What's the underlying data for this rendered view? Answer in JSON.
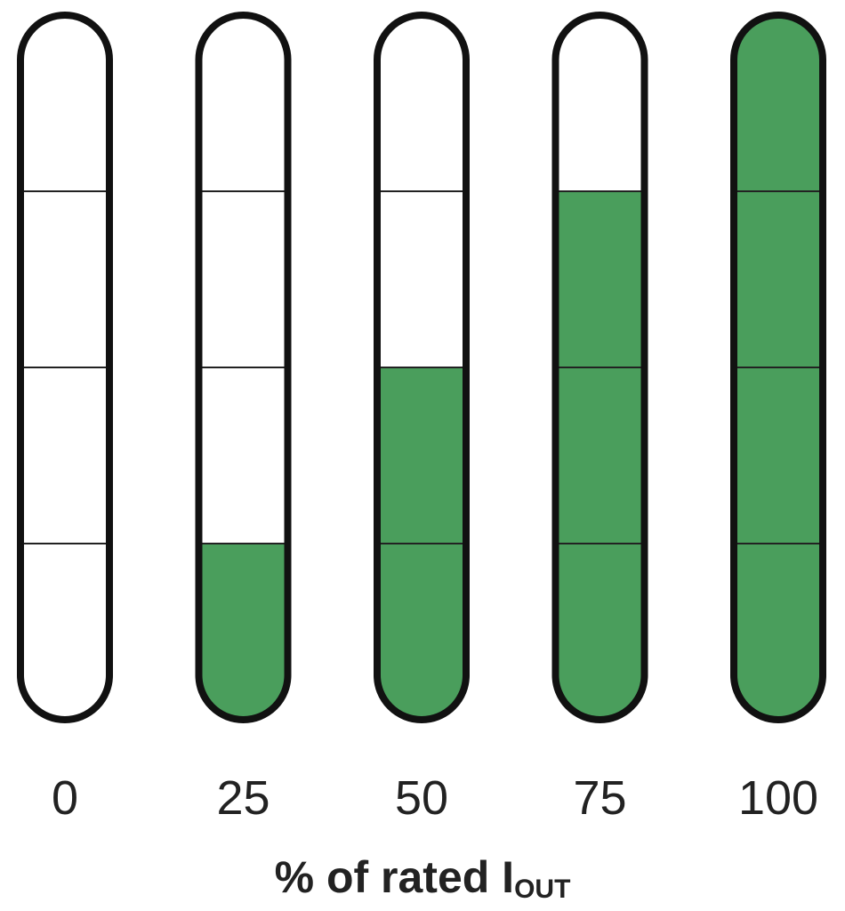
{
  "chart_data": {
    "type": "bar",
    "categories": [
      "0",
      "25",
      "50",
      "75",
      "100"
    ],
    "values": [
      0,
      25,
      50,
      75,
      100
    ],
    "color": "#4a9e5c",
    "ylim": [
      0,
      100
    ],
    "yticks": [
      25,
      50,
      75
    ],
    "grid": true,
    "x_label": "% of rated I",
    "x_label_subscript": "OUT"
  }
}
